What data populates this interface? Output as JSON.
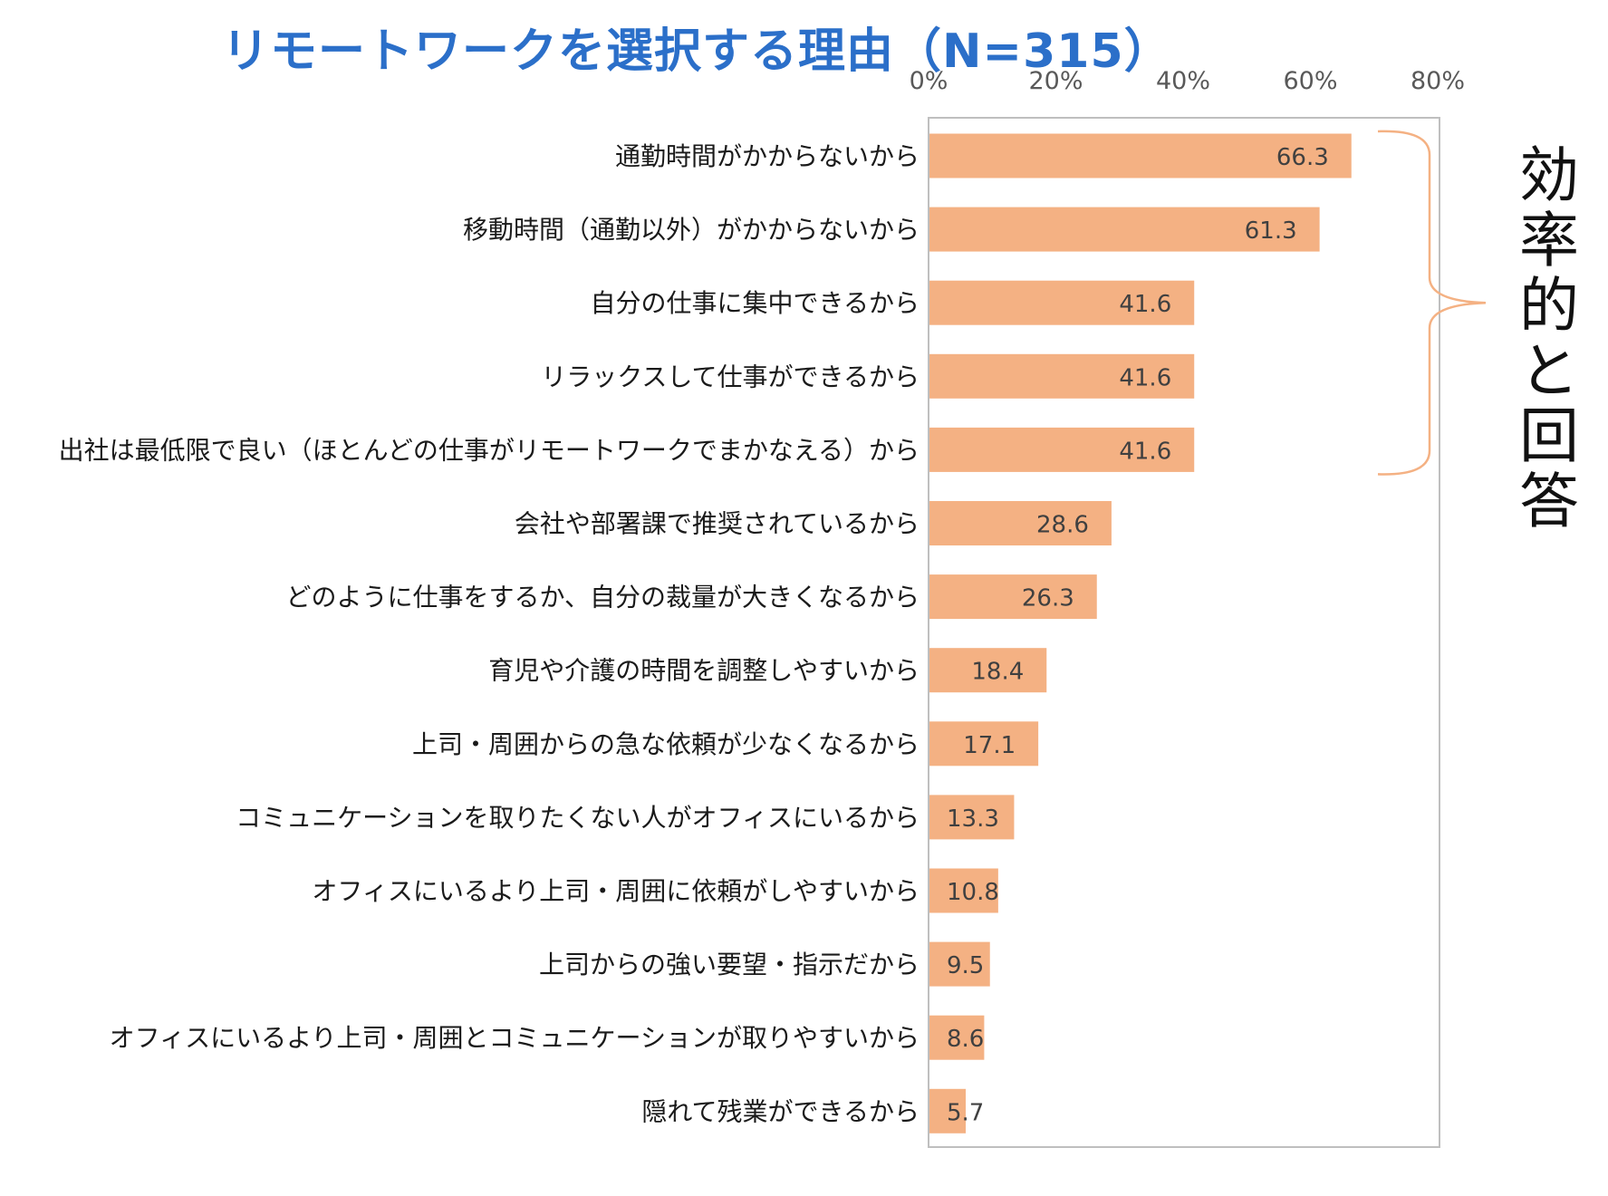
{
  "chart_data": {
    "type": "bar",
    "orientation": "horizontal",
    "title": "リモートワークを選択する理由（N=315）",
    "xlim": [
      0,
      80
    ],
    "x_ticks": [
      "0%",
      "20%",
      "40%",
      "60%",
      "80%"
    ],
    "x_axis_position": "top",
    "grid": false,
    "categories": [
      "通勤時間がかからないから",
      "移動時間（通勤以外）がかからないから",
      "自分の仕事に集中できるから",
      "リラックスして仕事ができるから",
      "出社は最低限で良い（ほとんどの仕事がリモートワークでまかなえる）から",
      "会社や部署課で推奨されているから",
      "どのように仕事をするか、自分の裁量が大きくなるから",
      "育児や介護の時間を調整しやすいから",
      "上司・周囲からの急な依頼が少なくなるから",
      "コミュニケーションを取りたくない人がオフィスにいるから",
      "オフィスにいるより上司・周囲に依頼がしやすいから",
      "上司からの強い要望・指示だから",
      "オフィスにいるより上司・周囲とコミュニケーションが取りやすいから",
      "隠れて残業ができるから"
    ],
    "values": [
      66.3,
      61.3,
      41.6,
      41.6,
      41.6,
      28.6,
      26.3,
      18.4,
      17.1,
      13.3,
      10.8,
      9.5,
      8.6,
      5.7
    ],
    "data_labels": [
      "66.3",
      "61.3",
      "41.6",
      "41.6",
      "41.6",
      "28.6",
      "26.3",
      "18.4",
      "17.1",
      "13.3",
      "10.8",
      "9.5",
      "8.6",
      "5.7"
    ],
    "bar_color": "#f4b183",
    "annotation": {
      "text": "効率的と回答",
      "bracket_covers_categories": [
        0,
        1,
        2,
        3,
        4
      ],
      "bracket_color": "#f4b183"
    }
  },
  "colors": {
    "title": "#2b6fc9",
    "bar": "#f4b183",
    "axis_frame": "#bfbfbf",
    "tick_label": "#595959",
    "category_label": "#1a1a1a",
    "data_label": "#404040"
  }
}
